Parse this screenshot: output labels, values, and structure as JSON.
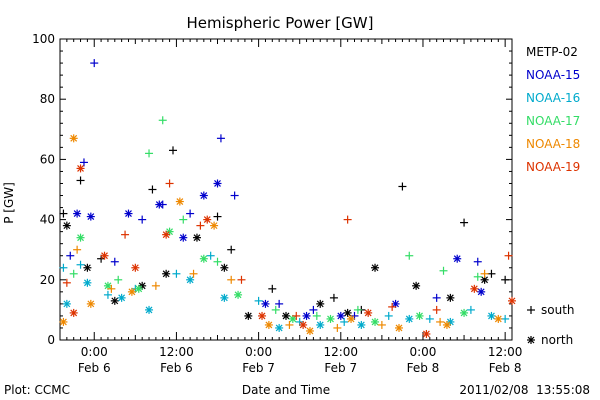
{
  "chart_data": {
    "type": "scatter",
    "title": "Hemispheric Power [GW]",
    "xlabel": "Date and Time",
    "ylabel": "P [GW]",
    "ylim": [
      0,
      100
    ],
    "xlim": [
      "2011-02-05T19:00",
      "2011-02-08T13:00"
    ],
    "y_ticks": [
      "0",
      "20",
      "40",
      "60",
      "80",
      "100"
    ],
    "x_ticks": [
      {
        "at": "2011-02-06T00:00",
        "time": "0:00",
        "date": "Feb 6"
      },
      {
        "at": "2011-02-06T12:00",
        "time": "12:00",
        "date": "Feb 6"
      },
      {
        "at": "2011-02-07T00:00",
        "time": "0:00",
        "date": "Feb 7"
      },
      {
        "at": "2011-02-07T12:00",
        "time": "12:00",
        "date": "Feb 7"
      },
      {
        "at": "2011-02-08T00:00",
        "time": "0:00",
        "date": "Feb 8"
      },
      {
        "at": "2011-02-08T12:00",
        "time": "12:00",
        "date": "Feb 8"
      }
    ],
    "grid": false,
    "legend_position": "right",
    "marker_legend": [
      {
        "symbol": "+",
        "label": "south"
      },
      {
        "symbol": "*",
        "label": "north"
      }
    ],
    "series": [
      {
        "name": "METP-02",
        "color": "#000000",
        "points": [
          [
            "2011-02-05T19:30",
            42,
            "+"
          ],
          [
            "2011-02-05T22:00",
            53,
            "+"
          ],
          [
            "2011-02-06T01:00",
            27,
            "+"
          ],
          [
            "2011-02-06T08:30",
            50,
            "+"
          ],
          [
            "2011-02-06T11:30",
            63,
            "+"
          ],
          [
            "2011-02-06T18:00",
            41,
            "+"
          ],
          [
            "2011-02-06T20:00",
            30,
            "+"
          ],
          [
            "2011-02-07T02:00",
            17,
            "+"
          ],
          [
            "2011-02-07T11:00",
            14,
            "+"
          ],
          [
            "2011-02-07T15:00",
            10,
            "+"
          ],
          [
            "2011-02-07T21:00",
            51,
            "+"
          ],
          [
            "2011-02-08T06:00",
            39,
            "+"
          ],
          [
            "2011-02-08T10:00",
            22,
            "+"
          ],
          [
            "2011-02-08T12:00",
            20,
            "+"
          ],
          [
            "2011-02-05T20:00",
            38,
            "*"
          ],
          [
            "2011-02-05T23:00",
            24,
            "*"
          ],
          [
            "2011-02-06T03:00",
            13,
            "*"
          ],
          [
            "2011-02-06T07:00",
            18,
            "*"
          ],
          [
            "2011-02-06T10:30",
            22,
            "*"
          ],
          [
            "2011-02-06T15:00",
            34,
            "*"
          ],
          [
            "2011-02-06T19:00",
            24,
            "*"
          ],
          [
            "2011-02-06T22:30",
            8,
            "*"
          ],
          [
            "2011-02-07T04:00",
            8,
            "*"
          ],
          [
            "2011-02-07T09:00",
            12,
            "*"
          ],
          [
            "2011-02-07T13:00",
            9,
            "*"
          ],
          [
            "2011-02-07T17:00",
            24,
            "*"
          ],
          [
            "2011-02-07T23:00",
            18,
            "*"
          ],
          [
            "2011-02-08T04:00",
            14,
            "*"
          ],
          [
            "2011-02-08T09:00",
            20,
            "*"
          ]
        ]
      },
      {
        "name": "NOAA-15",
        "color": "#0000cc",
        "points": [
          [
            "2011-02-05T20:30",
            28,
            "+"
          ],
          [
            "2011-02-05T22:30",
            59,
            "+"
          ],
          [
            "2011-02-06T00:00",
            92,
            "+"
          ],
          [
            "2011-02-06T03:00",
            26,
            "+"
          ],
          [
            "2011-02-06T07:00",
            40,
            "+"
          ],
          [
            "2011-02-06T10:00",
            45,
            "+"
          ],
          [
            "2011-02-06T14:00",
            42,
            "+"
          ],
          [
            "2011-02-06T18:30",
            67,
            "+"
          ],
          [
            "2011-02-06T20:30",
            48,
            "+"
          ],
          [
            "2011-02-07T03:00",
            12,
            "+"
          ],
          [
            "2011-02-07T08:00",
            10,
            "+"
          ],
          [
            "2011-02-07T14:00",
            8,
            "+"
          ],
          [
            "2011-02-08T02:00",
            14,
            "+"
          ],
          [
            "2011-02-08T08:00",
            26,
            "+"
          ],
          [
            "2011-02-05T21:30",
            42,
            "*"
          ],
          [
            "2011-02-05T23:30",
            41,
            "*"
          ],
          [
            "2011-02-06T05:00",
            42,
            "*"
          ],
          [
            "2011-02-06T09:30",
            45,
            "*"
          ],
          [
            "2011-02-06T13:00",
            34,
            "*"
          ],
          [
            "2011-02-06T16:00",
            48,
            "*"
          ],
          [
            "2011-02-06T18:00",
            52,
            "*"
          ],
          [
            "2011-02-07T01:00",
            12,
            "*"
          ],
          [
            "2011-02-07T07:00",
            8,
            "*"
          ],
          [
            "2011-02-07T12:00",
            8,
            "*"
          ],
          [
            "2011-02-07T20:00",
            12,
            "*"
          ],
          [
            "2011-02-08T05:00",
            27,
            "*"
          ],
          [
            "2011-02-08T08:30",
            16,
            "*"
          ]
        ]
      },
      {
        "name": "NOAA-16",
        "color": "#00aacc",
        "points": [
          [
            "2011-02-05T19:30",
            24,
            "+"
          ],
          [
            "2011-02-05T22:00",
            25,
            "+"
          ],
          [
            "2011-02-06T02:00",
            15,
            "+"
          ],
          [
            "2011-02-06T06:00",
            17,
            "+"
          ],
          [
            "2011-02-06T12:00",
            22,
            "+"
          ],
          [
            "2011-02-06T17:00",
            28,
            "+"
          ],
          [
            "2011-02-07T00:00",
            13,
            "+"
          ],
          [
            "2011-02-07T06:00",
            6,
            "+"
          ],
          [
            "2011-02-07T12:30",
            6,
            "+"
          ],
          [
            "2011-02-07T19:00",
            8,
            "+"
          ],
          [
            "2011-02-08T01:00",
            7,
            "+"
          ],
          [
            "2011-02-08T07:00",
            10,
            "+"
          ],
          [
            "2011-02-08T12:00",
            7,
            "+"
          ],
          [
            "2011-02-05T20:00",
            12,
            "*"
          ],
          [
            "2011-02-05T23:00",
            19,
            "*"
          ],
          [
            "2011-02-06T04:00",
            14,
            "*"
          ],
          [
            "2011-02-06T08:00",
            10,
            "*"
          ],
          [
            "2011-02-06T14:00",
            20,
            "*"
          ],
          [
            "2011-02-06T19:00",
            14,
            "*"
          ],
          [
            "2011-02-07T03:00",
            4,
            "*"
          ],
          [
            "2011-02-07T09:00",
            5,
            "*"
          ],
          [
            "2011-02-07T15:00",
            5,
            "*"
          ],
          [
            "2011-02-07T22:00",
            7,
            "*"
          ],
          [
            "2011-02-08T04:00",
            6,
            "*"
          ],
          [
            "2011-02-08T10:00",
            8,
            "*"
          ]
        ]
      },
      {
        "name": "NOAA-17",
        "color": "#33dd66",
        "points": [
          [
            "2011-02-05T21:00",
            22,
            "+"
          ],
          [
            "2011-02-06T03:30",
            20,
            "+"
          ],
          [
            "2011-02-06T08:00",
            62,
            "+"
          ],
          [
            "2011-02-06T10:00",
            73,
            "+"
          ],
          [
            "2011-02-06T13:00",
            40,
            "+"
          ],
          [
            "2011-02-06T18:00",
            26,
            "+"
          ],
          [
            "2011-02-07T02:30",
            10,
            "+"
          ],
          [
            "2011-02-07T08:30",
            8,
            "+"
          ],
          [
            "2011-02-07T14:30",
            10,
            "+"
          ],
          [
            "2011-02-07T22:00",
            28,
            "+"
          ],
          [
            "2011-02-08T03:00",
            23,
            "+"
          ],
          [
            "2011-02-08T08:00",
            21,
            "+"
          ],
          [
            "2011-02-05T22:00",
            34,
            "*"
          ],
          [
            "2011-02-06T02:00",
            18,
            "*"
          ],
          [
            "2011-02-06T06:30",
            17,
            "*"
          ],
          [
            "2011-02-06T11:00",
            36,
            "*"
          ],
          [
            "2011-02-06T16:00",
            27,
            "*"
          ],
          [
            "2011-02-06T21:00",
            15,
            "*"
          ],
          [
            "2011-02-07T05:00",
            7,
            "*"
          ],
          [
            "2011-02-07T10:30",
            7,
            "*"
          ],
          [
            "2011-02-07T17:00",
            6,
            "*"
          ],
          [
            "2011-02-07T23:30",
            8,
            "*"
          ],
          [
            "2011-02-08T06:00",
            9,
            "*"
          ]
        ]
      },
      {
        "name": "NOAA-18",
        "color": "#ee8800",
        "points": [
          [
            "2011-02-05T21:30",
            30,
            "+"
          ],
          [
            "2011-02-06T02:30",
            17,
            "+"
          ],
          [
            "2011-02-06T09:00",
            18,
            "+"
          ],
          [
            "2011-02-06T14:30",
            22,
            "+"
          ],
          [
            "2011-02-06T20:00",
            20,
            "+"
          ],
          [
            "2011-02-07T04:30",
            5,
            "+"
          ],
          [
            "2011-02-07T11:30",
            4,
            "+"
          ],
          [
            "2011-02-07T18:00",
            5,
            "+"
          ],
          [
            "2011-02-08T02:30",
            6,
            "+"
          ],
          [
            "2011-02-08T09:00",
            22,
            "+"
          ],
          [
            "2011-02-05T19:30",
            6,
            "*"
          ],
          [
            "2011-02-05T21:00",
            67,
            "*"
          ],
          [
            "2011-02-05T23:30",
            12,
            "*"
          ],
          [
            "2011-02-06T05:30",
            16,
            "*"
          ],
          [
            "2011-02-06T12:30",
            46,
            "*"
          ],
          [
            "2011-02-06T17:30",
            38,
            "*"
          ],
          [
            "2011-02-07T01:30",
            5,
            "*"
          ],
          [
            "2011-02-07T07:30",
            3,
            "*"
          ],
          [
            "2011-02-07T13:30",
            7,
            "*"
          ],
          [
            "2011-02-07T20:30",
            4,
            "*"
          ],
          [
            "2011-02-08T03:30",
            5,
            "*"
          ],
          [
            "2011-02-08T11:00",
            7,
            "*"
          ]
        ]
      },
      {
        "name": "NOAA-19",
        "color": "#dd3300",
        "points": [
          [
            "2011-02-05T20:00",
            19,
            "+"
          ],
          [
            "2011-02-06T04:30",
            35,
            "+"
          ],
          [
            "2011-02-06T11:00",
            52,
            "+"
          ],
          [
            "2011-02-06T15:30",
            38,
            "+"
          ],
          [
            "2011-02-06T21:30",
            20,
            "+"
          ],
          [
            "2011-02-07T05:30",
            8,
            "+"
          ],
          [
            "2011-02-07T13:00",
            40,
            "+"
          ],
          [
            "2011-02-07T19:30",
            11,
            "+"
          ],
          [
            "2011-02-08T02:00",
            10,
            "+"
          ],
          [
            "2011-02-08T12:30",
            28,
            "+"
          ],
          [
            "2011-02-05T21:00",
            9,
            "*"
          ],
          [
            "2011-02-05T22:00",
            57,
            "*"
          ],
          [
            "2011-02-06T01:30",
            28,
            "*"
          ],
          [
            "2011-02-06T06:00",
            24,
            "*"
          ],
          [
            "2011-02-06T10:30",
            35,
            "*"
          ],
          [
            "2011-02-06T16:30",
            40,
            "*"
          ],
          [
            "2011-02-07T00:30",
            8,
            "*"
          ],
          [
            "2011-02-07T06:30",
            5,
            "*"
          ],
          [
            "2011-02-07T16:00",
            9,
            "*"
          ],
          [
            "2011-02-08T00:30",
            2,
            "*"
          ],
          [
            "2011-02-08T07:30",
            17,
            "*"
          ],
          [
            "2011-02-08T13:00",
            13,
            "*"
          ]
        ]
      }
    ]
  },
  "footer": {
    "left": "Plot: CCMC",
    "center": "Date and Time",
    "right": "2011/02/08  13:55:08"
  }
}
